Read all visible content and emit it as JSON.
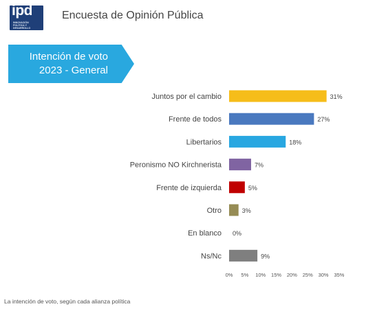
{
  "header": {
    "logo_text": "ipd",
    "logo_tagline": "Innovación Política y Desarrollo",
    "survey_title": "Encuesta de Opinión Pública"
  },
  "banner": {
    "line1": "Intención de voto",
    "line2": "2023 - General"
  },
  "caption": "La intención de voto, según cada alianza política",
  "chart_data": {
    "type": "bar",
    "orientation": "horizontal",
    "categories": [
      "Juntos por el cambio",
      "Frente de todos",
      "Libertarios",
      "Peronismo NO Kirchnerista",
      "Frente de izquierda",
      "Otro",
      "En blanco",
      "Ns/Nc"
    ],
    "values": [
      31,
      27,
      18,
      7,
      5,
      3,
      0,
      9
    ],
    "value_labels": [
      "31%",
      "27%",
      "18%",
      "7%",
      "5%",
      "3%",
      "0%",
      "9%"
    ],
    "colors": [
      "#f6bd1a",
      "#4a79bf",
      "#28a7e1",
      "#8064a2",
      "#c00000",
      "#968c55",
      "#a6a6a6",
      "#7f7f7f"
    ],
    "xlim": [
      0,
      35
    ],
    "xticks": [
      "0%",
      "5%",
      "10%",
      "15%",
      "20%",
      "25%",
      "30%",
      "35%"
    ],
    "xtick_values": [
      0,
      5,
      10,
      15,
      20,
      25,
      30,
      35
    ],
    "grid": false,
    "legend": "none"
  }
}
